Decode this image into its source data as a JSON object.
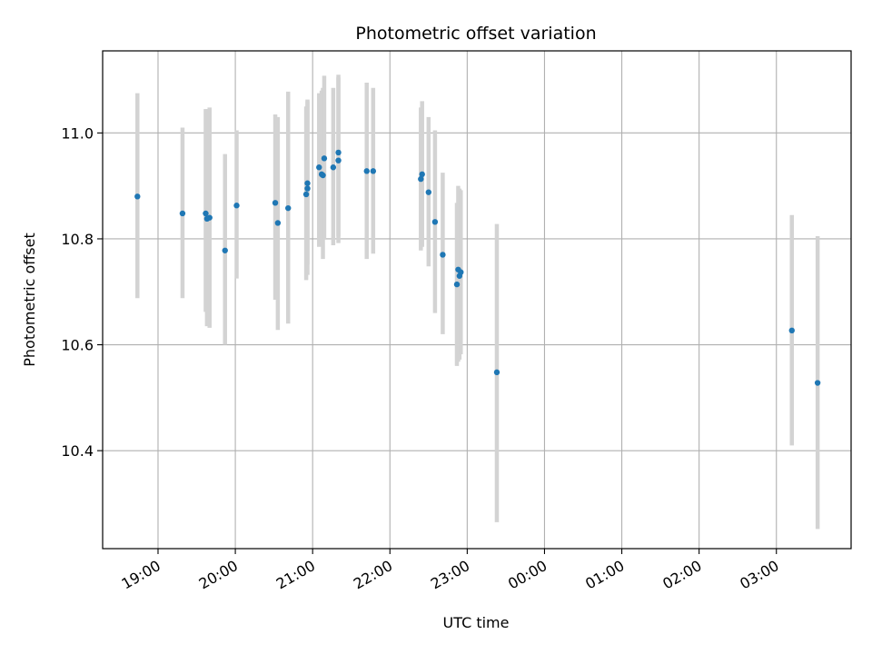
{
  "chart_data": {
    "type": "scatter",
    "title": "Photometric offset variation",
    "xlabel": "UTC time",
    "ylabel": "Photometric offset",
    "x_format": "HH:MM",
    "xlim": [
      "18:17",
      "03:58"
    ],
    "ylim": [
      10.215,
      11.155
    ],
    "xticks": [
      "19:00",
      "20:00",
      "21:00",
      "22:00",
      "23:00",
      "00:00",
      "01:00",
      "02:00",
      "03:00"
    ],
    "yticks": [
      10.4,
      10.6,
      10.8,
      11.0
    ],
    "grid": true,
    "marker_color": "#1f77b4",
    "errorbar_color": "#d3d3d3",
    "series": [
      {
        "points": [
          {
            "x": "18:44",
            "y": 10.88,
            "ylow": 10.688,
            "yhigh": 11.075
          },
          {
            "x": "19:19",
            "y": 10.848,
            "ylow": 10.688,
            "yhigh": 11.01
          },
          {
            "x": "19:37",
            "y": 10.848,
            "ylow": 10.662,
            "yhigh": 11.045
          },
          {
            "x": "19:38",
            "y": 10.838,
            "ylow": 10.635,
            "yhigh": 11.045
          },
          {
            "x": "19:40",
            "y": 10.84,
            "ylow": 10.632,
            "yhigh": 11.048
          },
          {
            "x": "19:52",
            "y": 10.778,
            "ylow": 10.6,
            "yhigh": 10.96
          },
          {
            "x": "20:01",
            "y": 10.863,
            "ylow": 10.725,
            "yhigh": 11.005
          },
          {
            "x": "20:31",
            "y": 10.868,
            "ylow": 10.685,
            "yhigh": 11.035
          },
          {
            "x": "20:33",
            "y": 10.83,
            "ylow": 10.628,
            "yhigh": 11.03
          },
          {
            "x": "20:41",
            "y": 10.858,
            "ylow": 10.64,
            "yhigh": 11.078
          },
          {
            "x": "20:55",
            "y": 10.884,
            "ylow": 10.722,
            "yhigh": 11.05
          },
          {
            "x": "20:56",
            "y": 10.905,
            "ylow": 10.752,
            "yhigh": 11.06
          },
          {
            "x": "20:56",
            "y": 10.895,
            "ylow": 10.732,
            "yhigh": 11.063
          },
          {
            "x": "21:05",
            "y": 10.935,
            "ylow": 10.785,
            "yhigh": 11.075
          },
          {
            "x": "21:07",
            "y": 10.922,
            "ylow": 10.81,
            "yhigh": 11.08
          },
          {
            "x": "21:08",
            "y": 10.92,
            "ylow": 10.762,
            "yhigh": 11.085
          },
          {
            "x": "21:09",
            "y": 10.952,
            "ylow": 10.8,
            "yhigh": 11.108
          },
          {
            "x": "21:16",
            "y": 10.935,
            "ylow": 10.788,
            "yhigh": 11.085
          },
          {
            "x": "21:20",
            "y": 10.948,
            "ylow": 10.792,
            "yhigh": 11.105
          },
          {
            "x": "21:20",
            "y": 10.963,
            "ylow": 10.805,
            "yhigh": 11.11
          },
          {
            "x": "21:42",
            "y": 10.928,
            "ylow": 10.762,
            "yhigh": 11.095
          },
          {
            "x": "21:47",
            "y": 10.928,
            "ylow": 10.772,
            "yhigh": 11.085
          },
          {
            "x": "22:24",
            "y": 10.913,
            "ylow": 10.778,
            "yhigh": 11.048
          },
          {
            "x": "22:25",
            "y": 10.922,
            "ylow": 10.785,
            "yhigh": 11.06
          },
          {
            "x": "22:30",
            "y": 10.888,
            "ylow": 10.748,
            "yhigh": 11.03
          },
          {
            "x": "22:35",
            "y": 10.832,
            "ylow": 10.66,
            "yhigh": 11.005
          },
          {
            "x": "22:41",
            "y": 10.77,
            "ylow": 10.62,
            "yhigh": 10.925
          },
          {
            "x": "22:52",
            "y": 10.714,
            "ylow": 10.56,
            "yhigh": 10.868
          },
          {
            "x": "22:53",
            "y": 10.742,
            "ylow": 10.568,
            "yhigh": 10.9
          },
          {
            "x": "22:54",
            "y": 10.73,
            "ylow": 10.572,
            "yhigh": 10.895
          },
          {
            "x": "22:55",
            "y": 10.737,
            "ylow": 10.582,
            "yhigh": 10.892
          },
          {
            "x": "23:23",
            "y": 10.548,
            "ylow": 10.265,
            "yhigh": 10.828
          },
          {
            "x": "03:12",
            "y": 10.627,
            "ylow": 10.41,
            "yhigh": 10.845
          },
          {
            "x": "03:32",
            "y": 10.528,
            "ylow": 10.252,
            "yhigh": 10.805
          }
        ]
      }
    ]
  }
}
